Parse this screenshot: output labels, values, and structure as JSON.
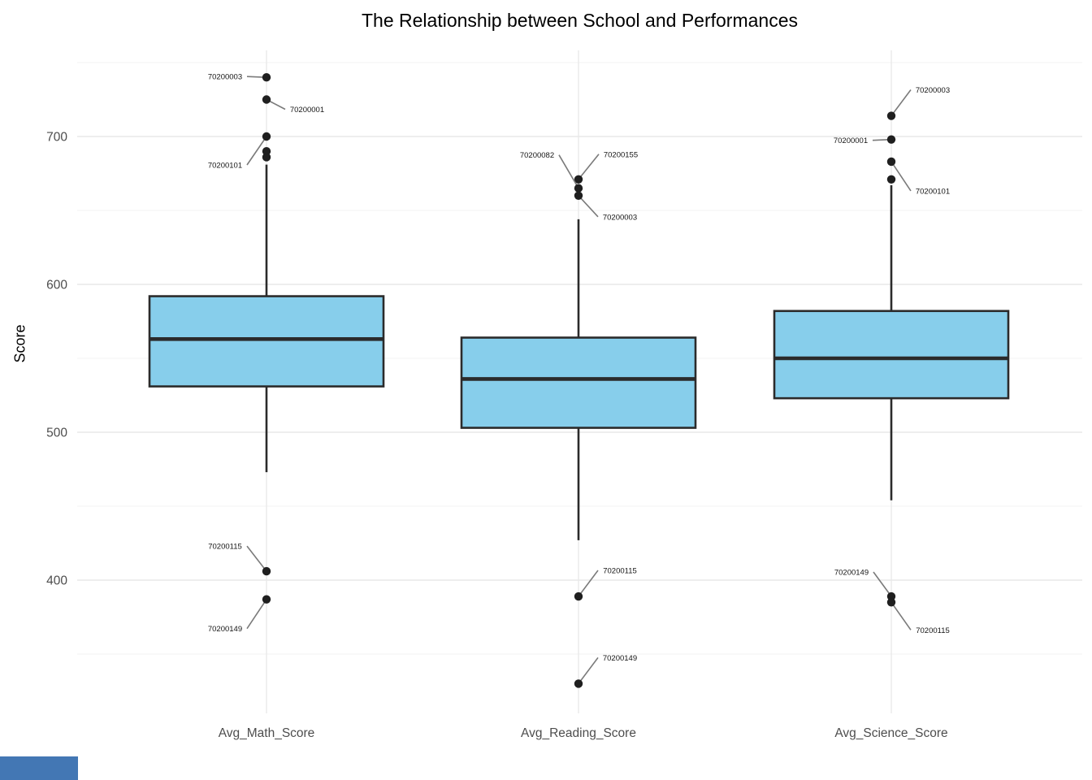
{
  "chart_data": {
    "type": "boxplot",
    "title": "The Relationship between School and Performances",
    "ylabel": "Score",
    "xlabel": "",
    "y_ticks": [
      700,
      600,
      500,
      400
    ],
    "y_minor_ticks": [
      750,
      650,
      550,
      450,
      350
    ],
    "ylim": [
      310,
      758
    ],
    "grid": "major and minor horizontal gridlines, vertical gridline per category",
    "legend": "none",
    "box_fill": "#87CEEB",
    "box_stroke": "#2b2b2b",
    "outlier_color": "#1f1f1f",
    "label_line_color": "#7a7a7a",
    "categories": [
      "Avg_Math_Score",
      "Avg_Reading_Score",
      "Avg_Science_Score"
    ],
    "series": [
      {
        "category": "Avg_Math_Score",
        "q1": 531,
        "median": 563,
        "q3": 592,
        "whisker_low": 473,
        "whisker_high": 681,
        "outliers": [
          {
            "value": 740,
            "label": "70200003",
            "dx": -51,
            "dy": -1
          },
          {
            "value": 725,
            "label": "70200001",
            "dx": 50,
            "dy": 12
          },
          {
            "value": 700,
            "label": "70200101",
            "dx": -51,
            "dy": 35
          },
          {
            "value": 690
          },
          {
            "value": 686
          },
          {
            "value": 406,
            "label": "70200115",
            "dx": -51,
            "dy": -31
          },
          {
            "value": 387,
            "label": "70200149",
            "dx": -51,
            "dy": 36
          }
        ]
      },
      {
        "category": "Avg_Reading_Score",
        "q1": 503,
        "median": 536,
        "q3": 564,
        "whisker_low": 427,
        "whisker_high": 644,
        "outliers": [
          {
            "value": 671,
            "label": "70200155",
            "dx": 52,
            "dy": -31
          },
          {
            "value": 665,
            "label": "70200082",
            "dx": -51,
            "dy": -41
          },
          {
            "value": 660,
            "label": "70200003",
            "dx": 51,
            "dy": 26
          },
          {
            "value": 389,
            "label": "70200115",
            "dx": 51,
            "dy": -32
          },
          {
            "value": 330,
            "label": "70200149",
            "dx": 51,
            "dy": -32
          }
        ]
      },
      {
        "category": "Avg_Science_Score",
        "q1": 523,
        "median": 550,
        "q3": 582,
        "whisker_low": 454,
        "whisker_high": 667,
        "outliers": [
          {
            "value": 714,
            "label": "70200003",
            "dx": 51,
            "dy": -32
          },
          {
            "value": 698,
            "label": "70200001",
            "dx": -50,
            "dy": 1
          },
          {
            "value": 683,
            "label": "70200101",
            "dx": 51,
            "dy": 36
          },
          {
            "value": 671
          },
          {
            "value": 389,
            "label": "70200149",
            "dx": -49,
            "dy": -30
          },
          {
            "value": 385,
            "label": "70200115",
            "dx": 51,
            "dy": 34
          }
        ]
      }
    ]
  },
  "window": {
    "bottom_strip_color": "#4377b4"
  }
}
